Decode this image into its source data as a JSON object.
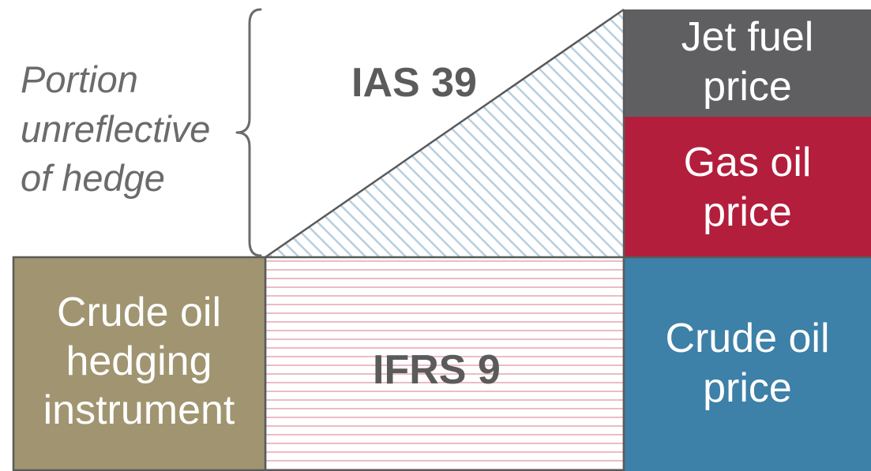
{
  "colors": {
    "jet_fuel_block": "#5f5f62",
    "gas_oil_block": "#b31e3c",
    "crude_oil_price_block": "#3d80a8",
    "crude_oil_hedging_block": "#a09570",
    "ias39_hatch": "#b7cfdf",
    "ifrs9_hatch": "#ecbcc4",
    "brace": "#6b6b6b",
    "label_text": "#5b5b5b",
    "block_text": "#ffffff"
  },
  "labels": {
    "portion_unreflective": [
      "Portion",
      "unreflective",
      "of hedge"
    ],
    "ias39": "IAS 39",
    "ifrs9": "IFRS 9",
    "jet_fuel_price": [
      "Jet fuel",
      "price"
    ],
    "gas_oil_price": [
      "Gas oil",
      "price"
    ],
    "crude_oil_price": [
      "Crude oil",
      "price"
    ],
    "crude_oil_hedging_instrument": [
      "Crude oil",
      "hedging",
      "instrument"
    ]
  }
}
